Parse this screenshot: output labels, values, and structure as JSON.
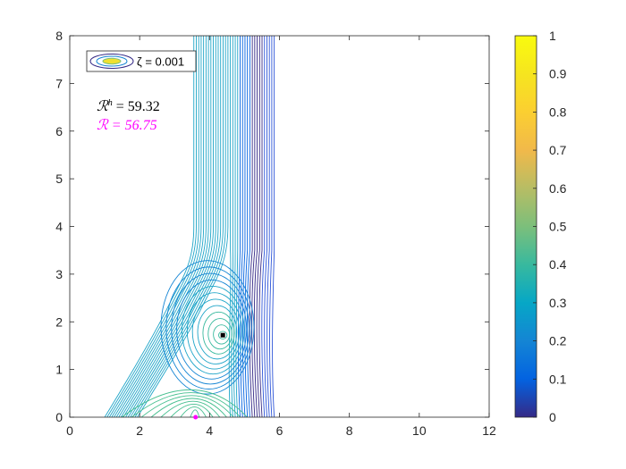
{
  "chart_data": {
    "type": "contour",
    "xlim": [
      0,
      12
    ],
    "ylim": [
      0,
      8
    ],
    "x_ticks": [
      "0",
      "2",
      "4",
      "6",
      "8",
      "10",
      "12"
    ],
    "y_ticks": [
      "0",
      "1",
      "2",
      "3",
      "4",
      "5",
      "6",
      "7",
      "8"
    ],
    "colorbar": {
      "limits": [
        0,
        1
      ],
      "ticks": [
        "0",
        "0.1",
        "0.2",
        "0.3",
        "0.4",
        "0.5",
        "0.6",
        "0.7",
        "0.8",
        "0.9",
        "1"
      ],
      "colormap": "parula"
    },
    "legend": {
      "label": "ζ = 0.001",
      "placement": "top-left"
    },
    "annotations": [
      {
        "text": "ℛ^h = 59.32",
        "display_base": "ℛ",
        "display_sup": "h",
        "display_rest": " = 59.32",
        "color": "#000000"
      },
      {
        "text": "ℛ = 56.75",
        "display": "ℛ = 56.75",
        "color": "#ff00ff"
      }
    ],
    "markers": [
      {
        "x": 4.38,
        "y": 1.72,
        "color": "#000000",
        "shape": "square"
      },
      {
        "x": 3.6,
        "y": 0.0,
        "color": "#ff00ff",
        "shape": "dot"
      }
    ]
  }
}
